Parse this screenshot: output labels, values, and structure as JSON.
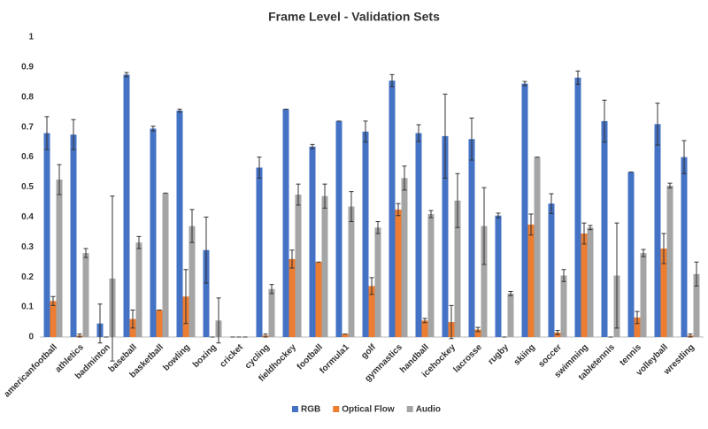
{
  "chart_data": {
    "type": "bar",
    "title": "Frame Level - Validation Sets",
    "categories": [
      "americanfootball",
      "athletics",
      "badminton",
      "baseball",
      "basketball",
      "bowling",
      "boxing",
      "cricket",
      "cycling",
      "fieldhockey",
      "football",
      "formula1",
      "golf",
      "gymnastics",
      "handball",
      "icehockey",
      "lacrosse",
      "rugby",
      "skiing",
      "soccer",
      "swimming",
      "tabletennis",
      "tennis",
      "volleyball",
      "wrestling"
    ],
    "series": [
      {
        "name": "RGB",
        "color": "#4472c4",
        "values": [
          0.68,
          0.675,
          0.045,
          0.875,
          0.695,
          0.755,
          0.29,
          0,
          0.565,
          0.76,
          0.635,
          0.72,
          0.685,
          0.855,
          0.68,
          0.67,
          0.66,
          0.405,
          0.845,
          0.445,
          0.865,
          0.72,
          0.55,
          0.71,
          0.6
        ],
        "errors": [
          0.055,
          0.05,
          0.065,
          0.007,
          0.008,
          0.005,
          0.11,
          0,
          0.035,
          0,
          0.007,
          0,
          0.035,
          0.02,
          0.028,
          0.14,
          0.07,
          0.008,
          0.007,
          0.033,
          0.022,
          0.07,
          0,
          0.07,
          0.055
        ]
      },
      {
        "name": "Optical Flow",
        "color": "#ed7d31",
        "values": [
          0.12,
          0.005,
          0,
          0.06,
          0.09,
          0.135,
          0,
          0,
          0.005,
          0.26,
          0.25,
          0.01,
          0.17,
          0.425,
          0.055,
          0.05,
          0.025,
          0,
          0.375,
          0.015,
          0.345,
          0,
          0.065,
          0.295,
          0.005
        ],
        "errors": [
          0.015,
          0.005,
          0,
          0.03,
          0,
          0.09,
          0,
          0,
          0.005,
          0.03,
          0,
          0,
          0.028,
          0.02,
          0.007,
          0.055,
          0.007,
          0,
          0.035,
          0.007,
          0.035,
          0,
          0.02,
          0.05,
          0.005
        ]
      },
      {
        "name": "Audio",
        "color": "#a5a5a5",
        "values": [
          0.525,
          0.28,
          0.195,
          0.315,
          0.48,
          0.37,
          0.055,
          0,
          0.16,
          0.475,
          0.47,
          0.435,
          0.365,
          0.53,
          0.41,
          0.455,
          0.37,
          0.145,
          0.6,
          0.205,
          0.365,
          0.205,
          0.28,
          0.505,
          0.21
        ],
        "errors": [
          0.05,
          0.015,
          0.275,
          0.02,
          0,
          0.055,
          0.075,
          0,
          0.015,
          0.035,
          0.04,
          0.05,
          0.02,
          0.04,
          0.012,
          0.09,
          0.128,
          0.007,
          0,
          0.02,
          0.007,
          0.175,
          0.012,
          0.008,
          0.04
        ]
      }
    ],
    "ylim": [
      0,
      1
    ],
    "yticks": [
      0,
      0.1,
      0.2,
      0.3,
      0.4,
      0.5,
      0.6,
      0.7,
      0.8,
      0.9,
      1
    ],
    "grid": false,
    "legend": "bottom"
  }
}
